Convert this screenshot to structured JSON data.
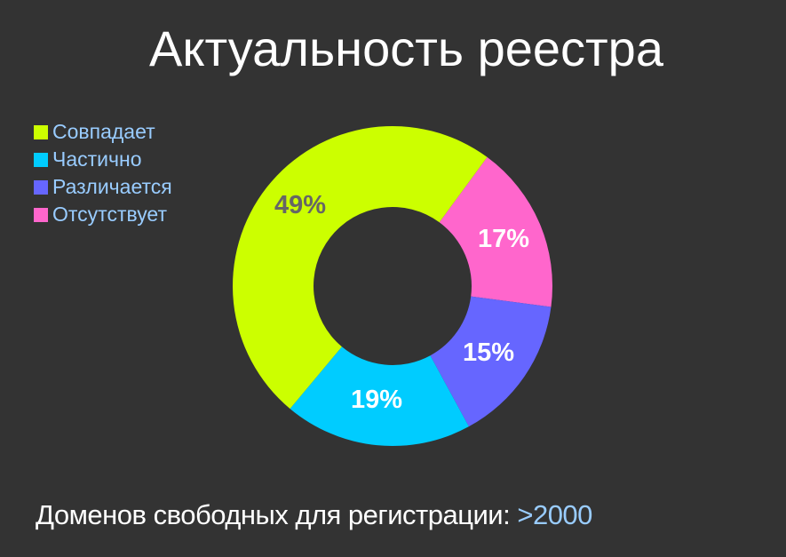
{
  "title": "Актуальность реестра",
  "legend": [
    {
      "label": "Совпадает",
      "color": "#ccff00"
    },
    {
      "label": "Частично",
      "color": "#00ccff"
    },
    {
      "label": "Различается",
      "color": "#6666ff"
    },
    {
      "label": "Отсутствует",
      "color": "#ff66cc"
    }
  ],
  "footer": {
    "label": "Доменов свободных для регистрации:",
    "value": ">2000"
  },
  "chart_data": {
    "type": "pie",
    "subtype": "donut",
    "title": "Актуальность реестра",
    "categories": [
      "Совпадает",
      "Частично",
      "Различается",
      "Отсутствует"
    ],
    "values": [
      49,
      19,
      15,
      17
    ],
    "labels": [
      "49%",
      "19%",
      "15%",
      "17%"
    ],
    "colors": [
      "#ccff00",
      "#00ccff",
      "#6666ff",
      "#ff66cc"
    ],
    "label_colors": [
      "#666666",
      "#ffffff",
      "#ffffff",
      "#ffffff"
    ],
    "legend_position": "top-left",
    "start_angle_deg": 36.3,
    "direction": "clockwise-from-pink",
    "annotation": "Доменов свободных для регистрации: >2000"
  }
}
